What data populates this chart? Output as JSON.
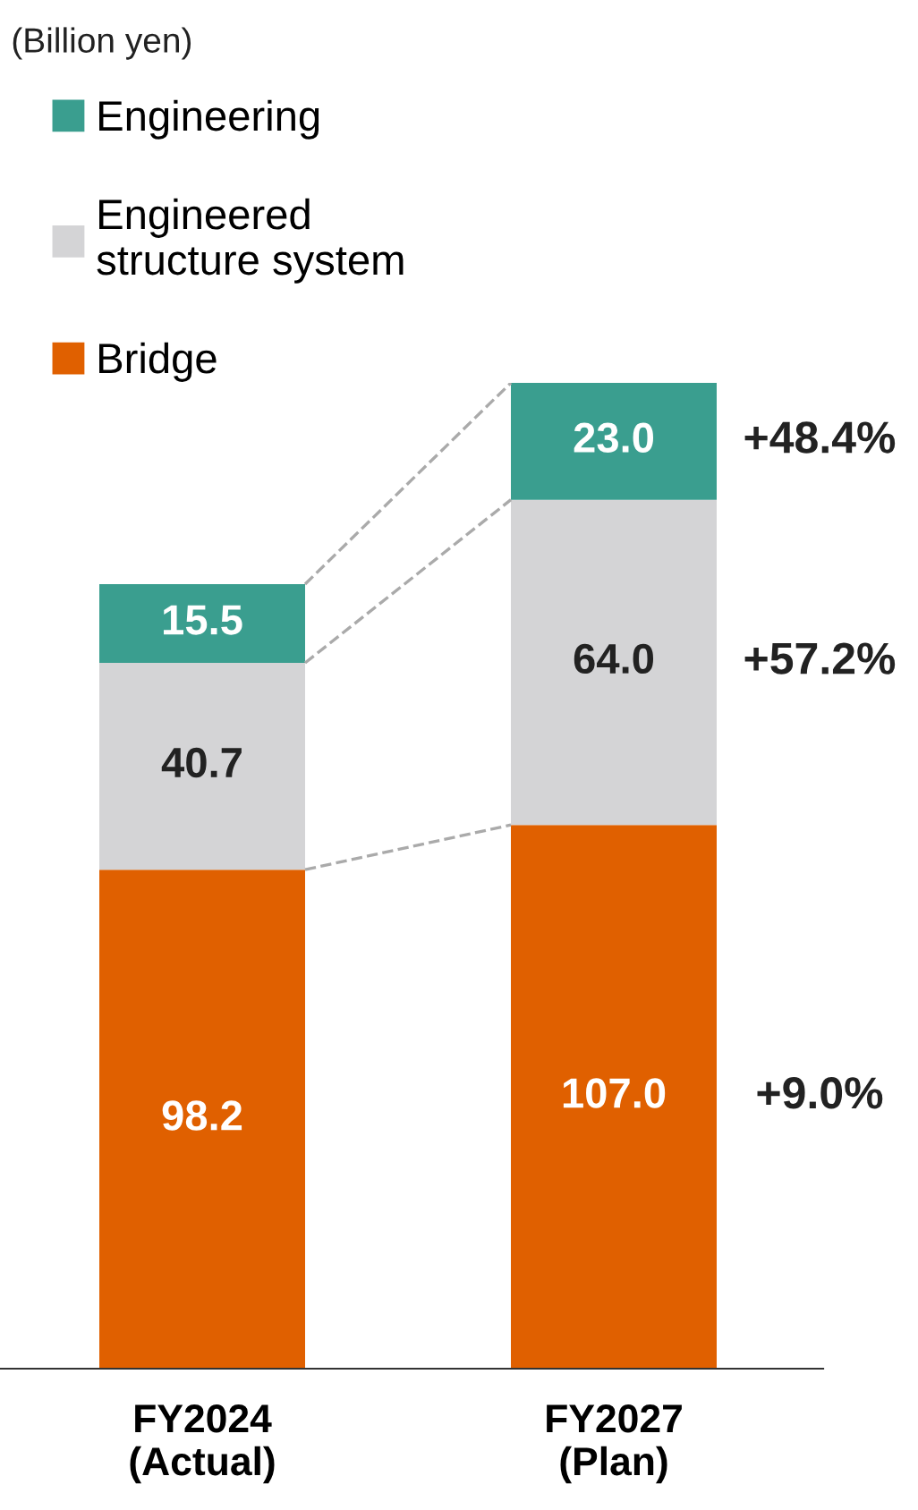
{
  "chart_data": {
    "type": "bar",
    "stacked": true,
    "categories": [
      "FY2024\n(Actual)",
      "FY2027\n(Plan)"
    ],
    "series": [
      {
        "name": "Bridge",
        "color": "#e06000",
        "values": [
          98.2,
          107.0
        ],
        "value_labels": [
          "98.2",
          "107.0"
        ]
      },
      {
        "name": "Engineered\nstructure system",
        "color": "#d4d4d6",
        "values": [
          40.7,
          64.0
        ],
        "value_labels": [
          "40.7",
          "64.0"
        ]
      },
      {
        "name": "Engineering",
        "color": "#3a9e8f",
        "values": [
          15.5,
          23.0
        ],
        "value_labels": [
          "15.5",
          "23.0"
        ]
      }
    ],
    "annotations": [
      "(Billion yen)",
      "+48.4%",
      "+57.2%",
      "+9.0%"
    ],
    "legend": "top left",
    "grid": false,
    "tick_labels": "x"
  }
}
